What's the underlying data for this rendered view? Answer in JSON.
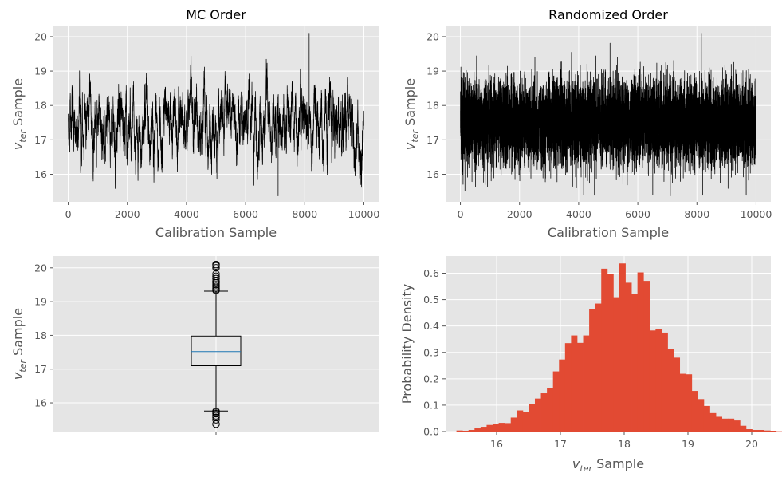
{
  "chart_data": [
    {
      "type": "line",
      "title": "MC Order",
      "xlabel": "Calibration Sample",
      "ylabel_var": "v",
      "ylabel_sub": "ter",
      "ylabel_rest": " Sample",
      "xlim": [
        -500,
        10500
      ],
      "ylim": [
        15.2,
        20.3
      ],
      "xticks": [
        0,
        2000,
        4000,
        6000,
        8000,
        10000
      ],
      "yticks": [
        16,
        17,
        18,
        19,
        20
      ],
      "n_samples": 10000,
      "mean": 17.5,
      "sd": 0.6,
      "min": 15.37,
      "max": 20.1,
      "series_color": "#000000",
      "autocorrelated": true
    },
    {
      "type": "line",
      "title": "Randomized Order",
      "xlabel": "Calibration Sample",
      "ylabel_var": "v",
      "ylabel_sub": "ter",
      "ylabel_rest": " Sample",
      "xlim": [
        -500,
        10500
      ],
      "ylim": [
        15.2,
        20.3
      ],
      "xticks": [
        0,
        2000,
        4000,
        6000,
        8000,
        10000
      ],
      "yticks": [
        16,
        17,
        18,
        19,
        20
      ],
      "n_samples": 10000,
      "mean": 17.5,
      "sd": 0.6,
      "min": 15.37,
      "max": 20.1,
      "series_color": "#000000",
      "autocorrelated": false
    },
    {
      "type": "box",
      "ylabel_var": "v",
      "ylabel_sub": "ter",
      "ylabel_rest": " Sample",
      "ylim": [
        15.15,
        20.35
      ],
      "yticks": [
        16,
        17,
        18,
        19,
        20
      ],
      "median": 17.52,
      "q1": 17.1,
      "q3": 17.98,
      "whisker_low": 15.76,
      "whisker_high": 19.31,
      "fliers_high": [
        19.33,
        19.36,
        19.4,
        19.45,
        19.5,
        19.55,
        19.6,
        19.68,
        19.75,
        19.82,
        20.0,
        20.06,
        20.1
      ],
      "fliers_low": [
        15.37,
        15.5,
        15.57,
        15.62,
        15.68,
        15.72,
        15.75
      ],
      "median_color": "#1f77b4"
    },
    {
      "type": "histogram",
      "xlabel_var": "v",
      "xlabel_sub": "ter",
      "xlabel_rest": " Sample",
      "ylabel": "Probability Density",
      "xlim": [
        15.2,
        20.3
      ],
      "ylim": [
        0,
        0.665
      ],
      "xticks": [
        16,
        17,
        18,
        19,
        20
      ],
      "yticks": [
        0.0,
        0.1,
        0.2,
        0.3,
        0.4,
        0.5,
        0.6
      ],
      "bin_start": 15.37,
      "bin_width": 0.0946,
      "densities": [
        0.004,
        0.003,
        0.006,
        0.012,
        0.018,
        0.025,
        0.028,
        0.033,
        0.032,
        0.053,
        0.08,
        0.074,
        0.104,
        0.125,
        0.145,
        0.165,
        0.228,
        0.273,
        0.335,
        0.364,
        0.336,
        0.364,
        0.463,
        0.485,
        0.617,
        0.597,
        0.509,
        0.637,
        0.564,
        0.522,
        0.603,
        0.571,
        0.383,
        0.389,
        0.375,
        0.313,
        0.28,
        0.219,
        0.217,
        0.154,
        0.123,
        0.097,
        0.07,
        0.056,
        0.049,
        0.049,
        0.042,
        0.022,
        0.009,
        0.006,
        0.006,
        0.004,
        0.003,
        0.001,
        0.002
      ],
      "bar_color": "#e24a33"
    }
  ]
}
